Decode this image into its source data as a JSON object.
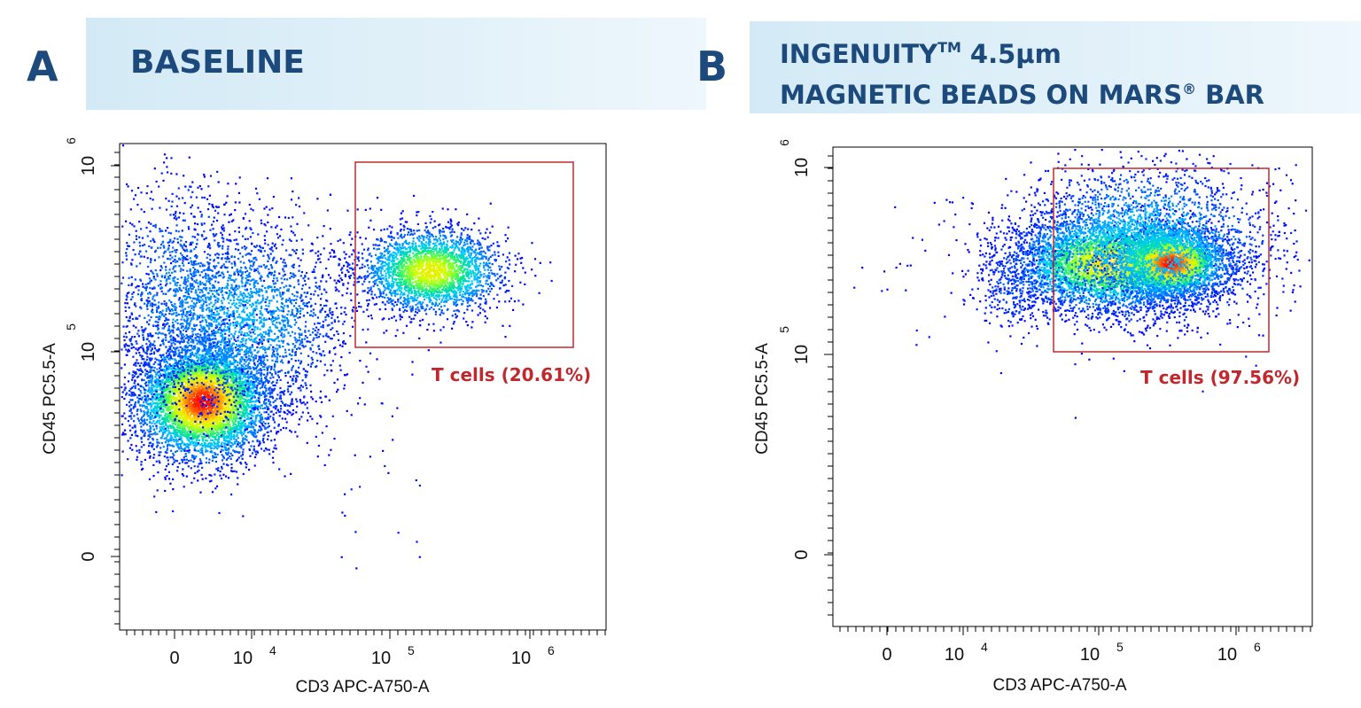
{
  "panels": [
    {
      "letter": "A",
      "title_lines": [
        "BASELINE"
      ],
      "gate_label": "T cells (20.61%)"
    },
    {
      "letter": "B",
      "title_line1_main": "INGENUITY",
      "title_line1_tm": "TM",
      "title_line1_rest": " 4.5µm",
      "title_line2_main": "MAGNETIC BEADS ON MARS",
      "title_line2_reg": "®",
      "title_line2_rest": " BAR",
      "gate_label": "T cells (97.56%)"
    }
  ],
  "colors": {
    "title": "#1d4a7c",
    "banner": "#d9edf8",
    "gate": "#c0282e",
    "density_scale": [
      "#0000ff",
      "#0080ff",
      "#00c8ff",
      "#00e0a0",
      "#60ff40",
      "#d0ff00",
      "#ffe000",
      "#ff8000",
      "#ff0000"
    ]
  },
  "chart_data": [
    {
      "type": "scatter",
      "style": "flow-cytometry density dot plot",
      "xlabel": "CD3 APC-A750-A",
      "ylabel": "CD45 PC5.5-A",
      "x_scale": "logicle",
      "y_scale": "logicle",
      "x_ticks": [
        {
          "base": "0",
          "exp": ""
        },
        {
          "base": "10",
          "exp": "4"
        },
        {
          "base": "10",
          "exp": "5"
        },
        {
          "base": "10",
          "exp": "6"
        }
      ],
      "y_ticks": [
        {
          "base": "0",
          "exp": ""
        },
        {
          "base": "10",
          "exp": "5"
        },
        {
          "base": "10",
          "exp": "6"
        }
      ],
      "xlim": [
        -12000,
        3000000
      ],
      "ylim": [
        -60000,
        1100000
      ],
      "gate": {
        "name": "T cells",
        "percent": 20.61,
        "x_range": [
          60000,
          1800000
        ],
        "y_range": [
          105000,
          1000000
        ]
      },
      "populations": [
        {
          "x_center": 1500,
          "y_center": 30000,
          "density": "highest"
        },
        {
          "x_center": 20000,
          "y_center": 200000,
          "density": "low"
        },
        {
          "x_center": 190000,
          "y_center": 420000,
          "density": "high"
        }
      ]
    },
    {
      "type": "scatter",
      "style": "flow-cytometry density dot plot",
      "xlabel": "CD3 APC-A750-A",
      "ylabel": "CD45 PC5.5-A",
      "x_scale": "logicle",
      "y_scale": "logicle",
      "x_ticks": [
        {
          "base": "0",
          "exp": ""
        },
        {
          "base": "10",
          "exp": "4"
        },
        {
          "base": "10",
          "exp": "5"
        },
        {
          "base": "10",
          "exp": "6"
        }
      ],
      "y_ticks": [
        {
          "base": "0",
          "exp": ""
        },
        {
          "base": "10",
          "exp": "5"
        },
        {
          "base": "10",
          "exp": "6"
        }
      ],
      "xlim": [
        -12000,
        3000000
      ],
      "ylim": [
        -60000,
        1100000
      ],
      "gate": {
        "name": "T cells",
        "percent": 97.56,
        "x_range": [
          55000,
          1700000
        ],
        "y_range": [
          100000,
          950000
        ]
      },
      "populations": [
        {
          "x_center": 100000,
          "y_center": 420000,
          "density": "high"
        },
        {
          "x_center": 320000,
          "y_center": 420000,
          "density": "highest"
        }
      ]
    }
  ]
}
